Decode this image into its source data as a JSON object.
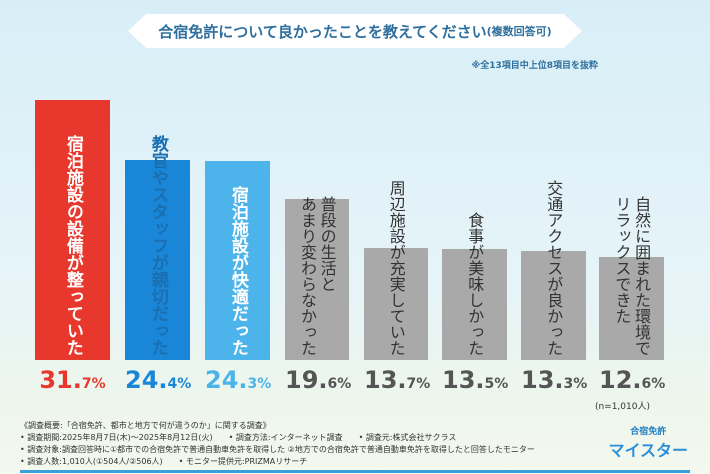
{
  "chart_data": {
    "type": "bar",
    "title": "合宿免許について良かったことを教えてください",
    "title_suffix": "(複数回答可)",
    "subtitle": "※全13項目中上位8項目を抜粋",
    "categories": [
      [
        "宿泊施設の設備が整っていた"
      ],
      [
        "教官やスタッフが親切だった"
      ],
      [
        "宿泊施設が快適だった"
      ],
      [
        "普段の生活と",
        "あまり変わらなかった"
      ],
      [
        "周辺施設が充実していた"
      ],
      [
        "食事が美味しかった"
      ],
      [
        "交通アクセスが良かった"
      ],
      [
        "自然に囲まれた環境で",
        "リラックスできた"
      ]
    ],
    "values": [
      31.7,
      24.4,
      24.3,
      19.6,
      13.7,
      13.5,
      13.3,
      12.6
    ],
    "value_labels": [
      [
        "31.",
        "7%"
      ],
      [
        "24.",
        "4%"
      ],
      [
        "24.",
        "3%"
      ],
      [
        "19.",
        "6%"
      ],
      [
        "13.",
        "7%"
      ],
      [
        "13.",
        "5%"
      ],
      [
        "13.",
        "3%"
      ],
      [
        "12.",
        "6%"
      ]
    ],
    "colors": [
      "#e8382e",
      "#1a86d8",
      "#4cb4ea",
      "#a9a9a9",
      "#a9a9a9",
      "#a9a9a9",
      "#a9a9a9",
      "#a9a9a9"
    ],
    "value_colors": [
      "#e8382e",
      "#1a86d8",
      "#4cb4ea",
      "#555555",
      "#555555",
      "#555555",
      "#555555",
      "#555555"
    ],
    "ylim": [
      0,
      31.7
    ],
    "sample_note": "(n=1,010人)"
  },
  "footer": {
    "lines": [
      "《調査概要:「合宿免許、都市と地方で何が違うのか」に関する調査》",
      "• 調査期間:2025年8月7日(木)〜2025年8月12日(火)　　• 調査方法:インターネット調査　　• 調査元:株式会社サクラス",
      "• 調査対象:調査回答時に①都市での合宿免許で普通自動車免許を取得した ②地方での合宿免許で普通自動車免許を取得したと回答したモニター",
      "• 調査人数:1,010人(①504人/②506人)　　• モニター提供元:PRIZMAリサーチ"
    ],
    "logo_top": "合宿免許",
    "logo_main": "マイスター"
  }
}
